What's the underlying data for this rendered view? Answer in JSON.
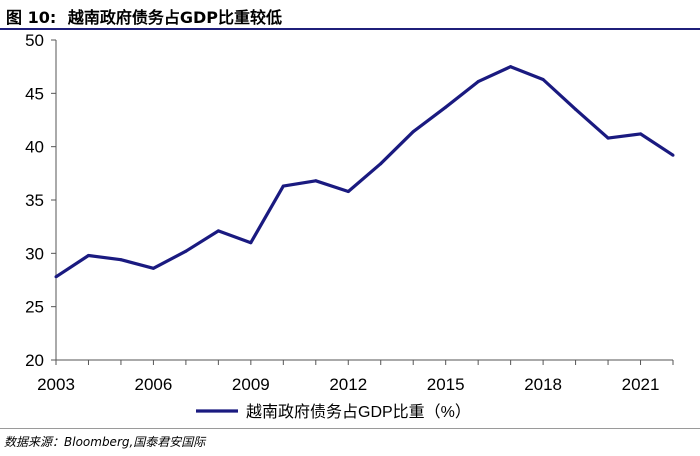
{
  "header": {
    "figure_no": "图 10:",
    "title": "越南政府债务占GDP比重较低"
  },
  "chart_data": {
    "type": "line",
    "title": "越南政府债务占GDP比重较低",
    "xlabel": "",
    "ylabel": "",
    "x_ticks": [
      "2003",
      "2006",
      "2009",
      "2012",
      "2015",
      "2018",
      "2021"
    ],
    "y_ticks": [
      "20",
      "25",
      "30",
      "35",
      "40",
      "45",
      "50"
    ],
    "ylim": [
      20,
      50
    ],
    "xlim": [
      2003,
      2022
    ],
    "grid": false,
    "legend_position": "bottom",
    "series": [
      {
        "name": "越南政府债务占GDP比重（%）",
        "color": "#1a1a80",
        "x": [
          2003,
          2004,
          2005,
          2006,
          2007,
          2008,
          2009,
          2010,
          2011,
          2012,
          2013,
          2014,
          2015,
          2016,
          2017,
          2018,
          2019,
          2020,
          2021,
          2022
        ],
        "values": [
          27.8,
          29.8,
          29.4,
          28.6,
          30.2,
          32.1,
          31.0,
          36.3,
          36.8,
          35.8,
          38.4,
          41.4,
          43.7,
          46.1,
          47.5,
          46.3,
          43.5,
          40.8,
          41.2,
          39.2
        ]
      }
    ]
  },
  "footer": {
    "source": "数据来源：Bloomberg,国泰君安国际"
  }
}
